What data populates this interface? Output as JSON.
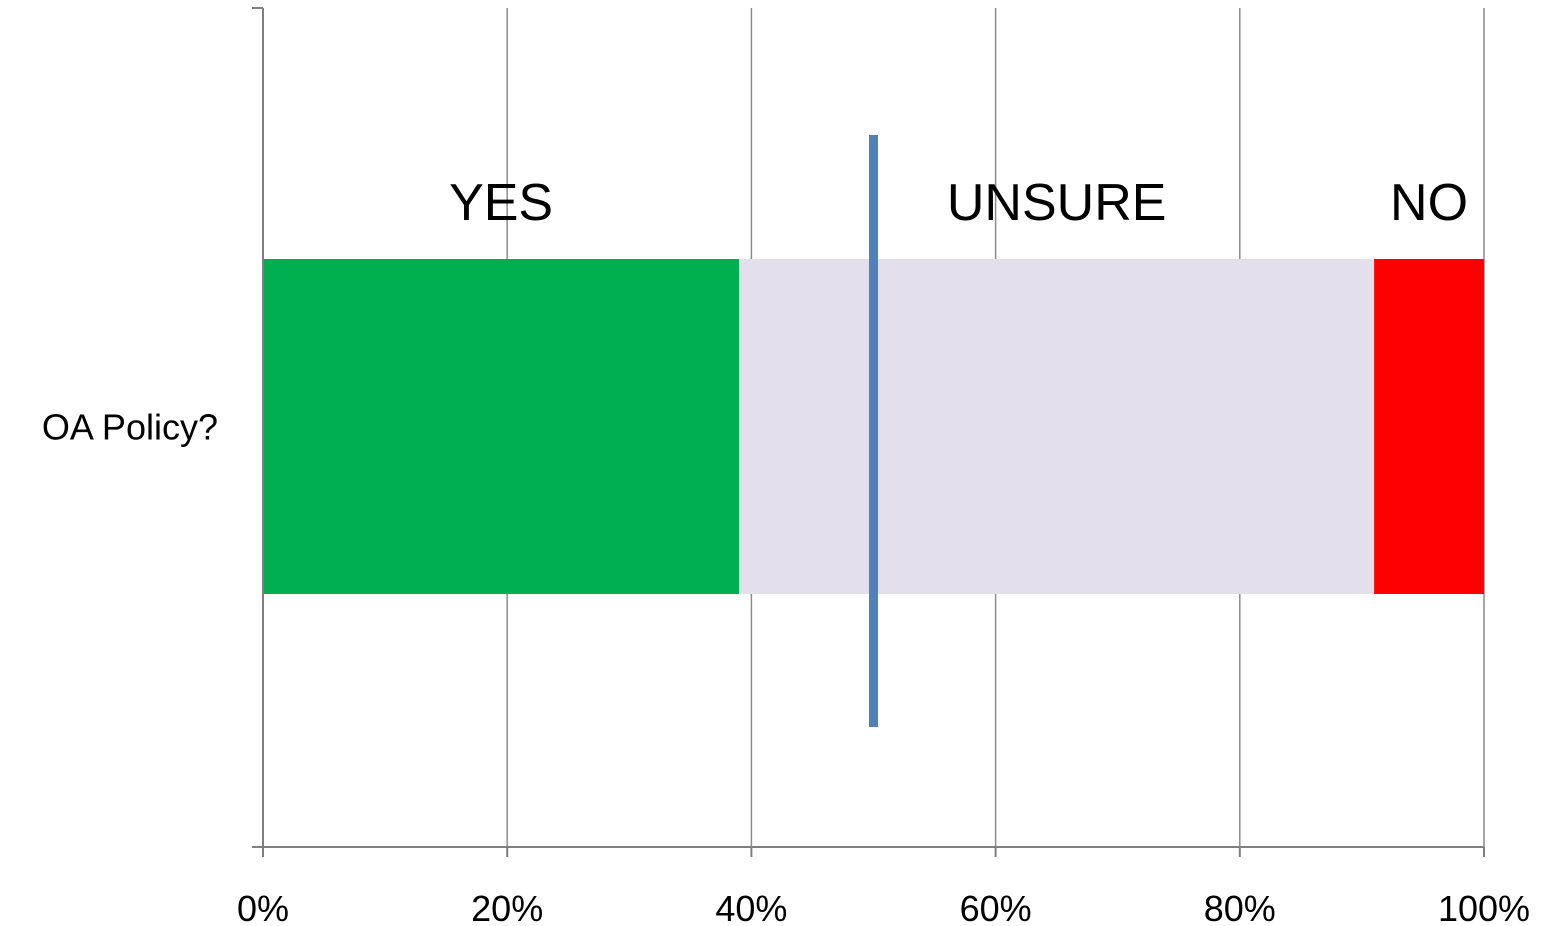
{
  "chart_data": {
    "type": "bar",
    "orientation": "horizontal",
    "stacking": "percent",
    "categories": [
      "OA Policy?"
    ],
    "series": [
      {
        "name": "YES",
        "values": [
          39
        ],
        "color": "#00AF50"
      },
      {
        "name": "UNSURE",
        "values": [
          52
        ],
        "color": "#E4DFEC"
      },
      {
        "name": "NO",
        "values": [
          9
        ],
        "color": "#FF0000"
      }
    ],
    "xlim": [
      0,
      100
    ],
    "x_ticks": [
      "0%",
      "20%",
      "40%",
      "60%",
      "80%",
      "100%"
    ],
    "grid": true,
    "reference_line": {
      "value": 50,
      "color": "#4F81BD"
    },
    "title": "",
    "xlabel": "",
    "ylabel": ""
  }
}
